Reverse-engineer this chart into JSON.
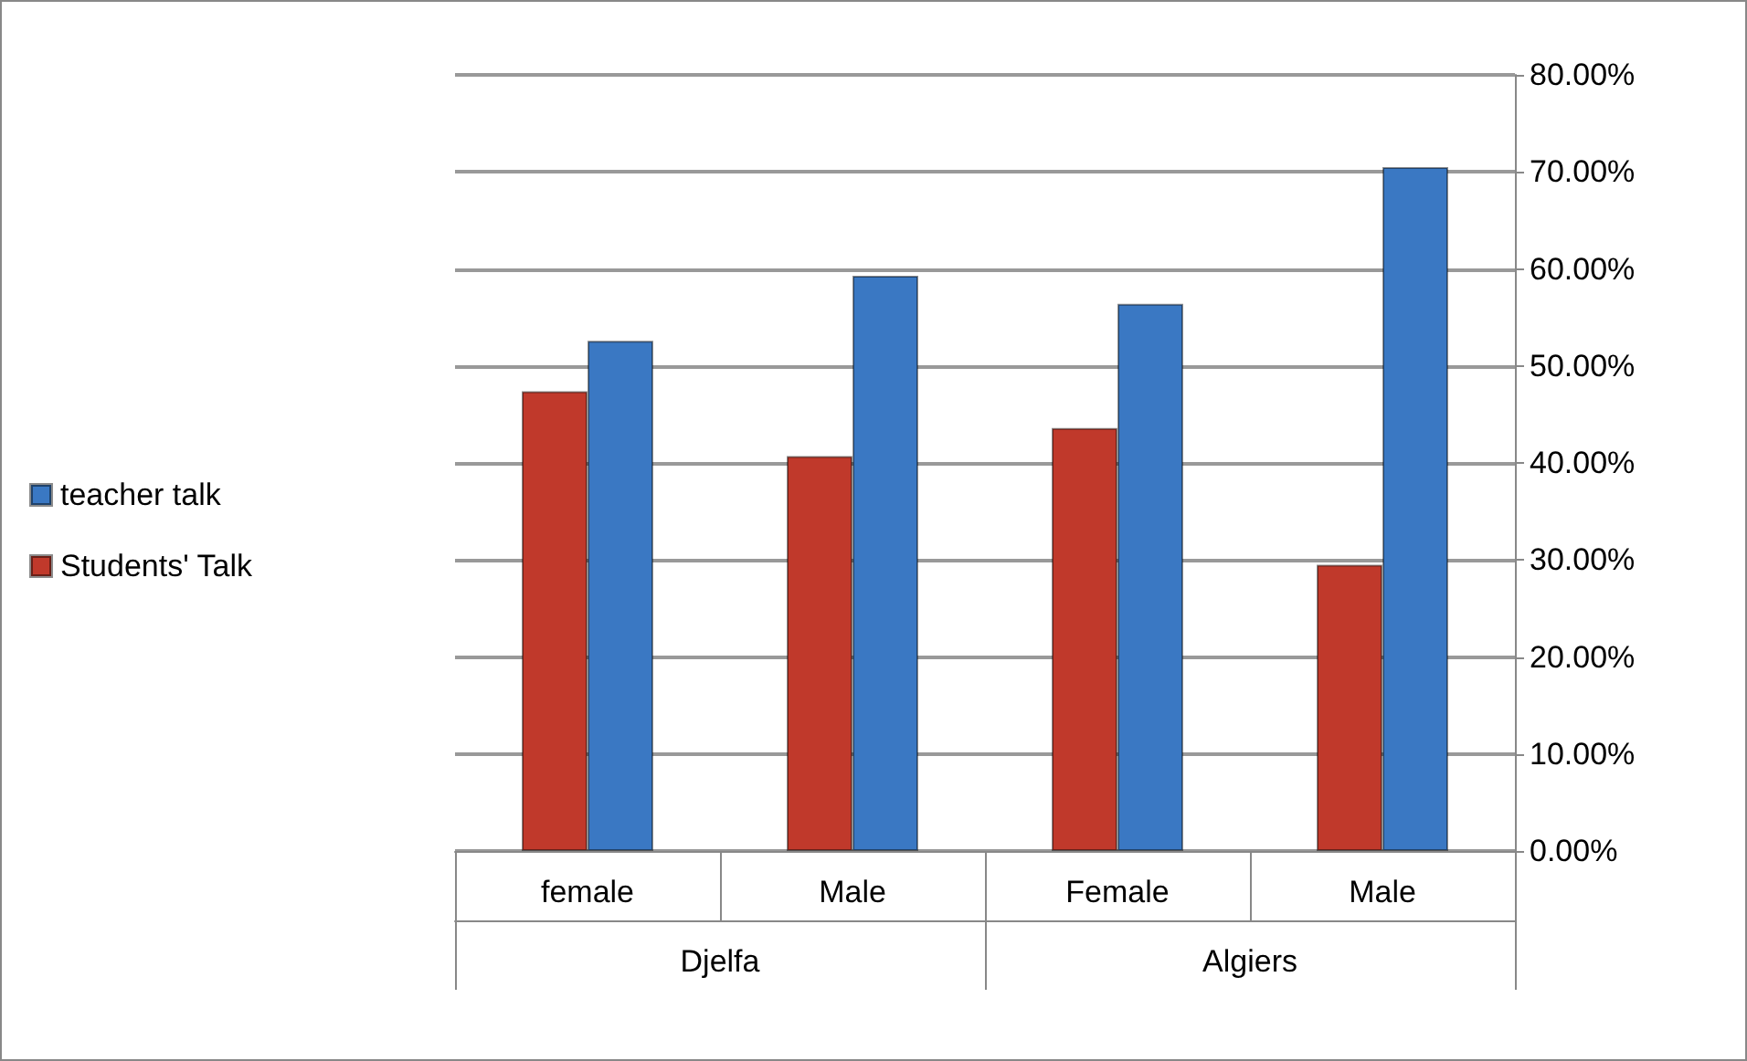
{
  "chart_data": {
    "type": "bar",
    "categories": [
      "female",
      "Male",
      "Female",
      "Male"
    ],
    "series": [
      {
        "name": "Students' Talk",
        "color": "#c0392b",
        "values": [
          47.4,
          40.7,
          43.6,
          29.5
        ]
      },
      {
        "name": "teacher talk",
        "color": "#3a78c3",
        "values": [
          52.6,
          59.3,
          56.4,
          70.5
        ]
      }
    ],
    "annotations": [
      "Djelfa",
      "Algiers"
    ],
    "ylim": [
      0,
      80
    ],
    "yticks": [
      {
        "value": 0,
        "label": "0.00%"
      },
      {
        "value": 10,
        "label": "10.00%"
      },
      {
        "value": 20,
        "label": "20.00%"
      },
      {
        "value": 30,
        "label": "30.00%"
      },
      {
        "value": 40,
        "label": "40.00%"
      },
      {
        "value": 50,
        "label": "50.00%"
      },
      {
        "value": 60,
        "label": "60.00%"
      },
      {
        "value": 70,
        "label": "70.00%"
      },
      {
        "value": 80,
        "label": "80.00%"
      }
    ],
    "grid": "y",
    "legend": "left"
  }
}
